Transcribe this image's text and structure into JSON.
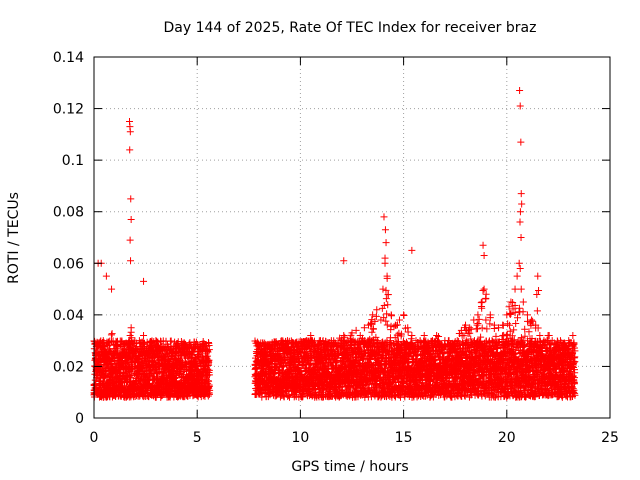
{
  "chart_data": {
    "type": "scatter",
    "title": "Day 144 of 2025, Rate Of TEC Index for receiver braz",
    "xlabel": "GPS time / hours",
    "ylabel": "ROTI / TECUs",
    "xlim": [
      0,
      25
    ],
    "ylim": [
      0,
      0.14
    ],
    "xticks": [
      0,
      5,
      10,
      15,
      20,
      25
    ],
    "xtick_labels": [
      "0",
      "5",
      "10",
      "15",
      "20",
      "25"
    ],
    "yticks": [
      0,
      0.02,
      0.04,
      0.06,
      0.08,
      0.1,
      0.12,
      0.14
    ],
    "ytick_labels": [
      "0",
      "0.02",
      "0.04",
      "0.06",
      "0.08",
      "0.1",
      "0.12",
      "0.14"
    ],
    "grid": true,
    "marker": "+",
    "color": "#ff0000",
    "data_gap_hours": [
      5.6,
      7.8
    ],
    "series": [
      {
        "name": "ROTI",
        "x": [
          0.05,
          0.15,
          0.3,
          0.45,
          0.6,
          0.75,
          0.9,
          1.1,
          1.3,
          1.5,
          1.7,
          1.75,
          1.8,
          1.85,
          2.0,
          2.2,
          2.4,
          2.6,
          2.8,
          3.0,
          3.2,
          3.4,
          3.6,
          3.8,
          4.0,
          4.2,
          4.4,
          4.6,
          4.8,
          5.0,
          5.2,
          5.4,
          5.5,
          7.9,
          8.1,
          8.3,
          8.5,
          8.7,
          8.9,
          9.1,
          9.3,
          9.5,
          9.7,
          9.9,
          10.1,
          10.3,
          10.5,
          10.7,
          10.9,
          11.1,
          11.3,
          11.5,
          11.7,
          11.9,
          12.1,
          12.3,
          12.5,
          12.7,
          12.9,
          13.1,
          13.3,
          13.5,
          13.7,
          13.9,
          14.0,
          14.1,
          14.2,
          14.4,
          14.6,
          14.8,
          15.0,
          15.2,
          15.4,
          15.6,
          15.8,
          16.0,
          16.2,
          16.4,
          16.6,
          16.8,
          17.0,
          17.2,
          17.4,
          17.6,
          17.8,
          18.0,
          18.2,
          18.4,
          18.6,
          18.8,
          18.9,
          19.0,
          19.2,
          19.4,
          19.6,
          19.8,
          20.0,
          20.2,
          20.4,
          20.5,
          20.6,
          20.65,
          20.7,
          20.8,
          21.0,
          21.2,
          21.4,
          21.6,
          21.8,
          22.0,
          22.2,
          22.4,
          22.6,
          22.8,
          23.0,
          23.2,
          1.72,
          1.74,
          1.76,
          1.73,
          1.78,
          1.8,
          1.75,
          1.77,
          14.05,
          14.12,
          14.15,
          14.1,
          20.62,
          20.65,
          20.68,
          20.7,
          20.72,
          20.66,
          20.64,
          20.69,
          0.35,
          0.6,
          0.85,
          18.85,
          18.9,
          12.1,
          15.4,
          21.5,
          0.2,
          2.4
        ],
        "y": [
          0.02,
          0.022,
          0.028,
          0.03,
          0.025,
          0.022,
          0.02,
          0.021,
          0.024,
          0.022,
          0.03,
          0.032,
          0.035,
          0.028,
          0.026,
          0.03,
          0.032,
          0.025,
          0.028,
          0.03,
          0.026,
          0.024,
          0.022,
          0.02,
          0.022,
          0.024,
          0.02,
          0.019,
          0.021,
          0.02,
          0.022,
          0.02,
          0.024,
          0.022,
          0.025,
          0.027,
          0.028,
          0.024,
          0.026,
          0.03,
          0.028,
          0.025,
          0.026,
          0.028,
          0.027,
          0.03,
          0.032,
          0.028,
          0.029,
          0.03,
          0.028,
          0.03,
          0.029,
          0.031,
          0.032,
          0.03,
          0.033,
          0.034,
          0.032,
          0.035,
          0.036,
          0.04,
          0.042,
          0.038,
          0.05,
          0.06,
          0.055,
          0.04,
          0.036,
          0.038,
          0.04,
          0.035,
          0.032,
          0.03,
          0.03,
          0.032,
          0.028,
          0.03,
          0.032,
          0.028,
          0.03,
          0.03,
          0.028,
          0.03,
          0.034,
          0.036,
          0.035,
          0.038,
          0.04,
          0.045,
          0.05,
          0.048,
          0.04,
          0.036,
          0.035,
          0.036,
          0.04,
          0.045,
          0.05,
          0.055,
          0.06,
          0.058,
          0.05,
          0.045,
          0.04,
          0.038,
          0.036,
          0.032,
          0.03,
          0.032,
          0.03,
          0.028,
          0.03,
          0.028,
          0.03,
          0.032,
          0.115,
          0.113,
          0.111,
          0.104,
          0.085,
          0.077,
          0.069,
          0.061,
          0.078,
          0.073,
          0.068,
          0.062,
          0.127,
          0.121,
          0.107,
          0.087,
          0.083,
          0.08,
          0.076,
          0.07,
          0.06,
          0.055,
          0.05,
          0.067,
          0.063,
          0.061,
          0.065,
          0.055,
          0.06,
          0.053
        ]
      }
    ]
  }
}
